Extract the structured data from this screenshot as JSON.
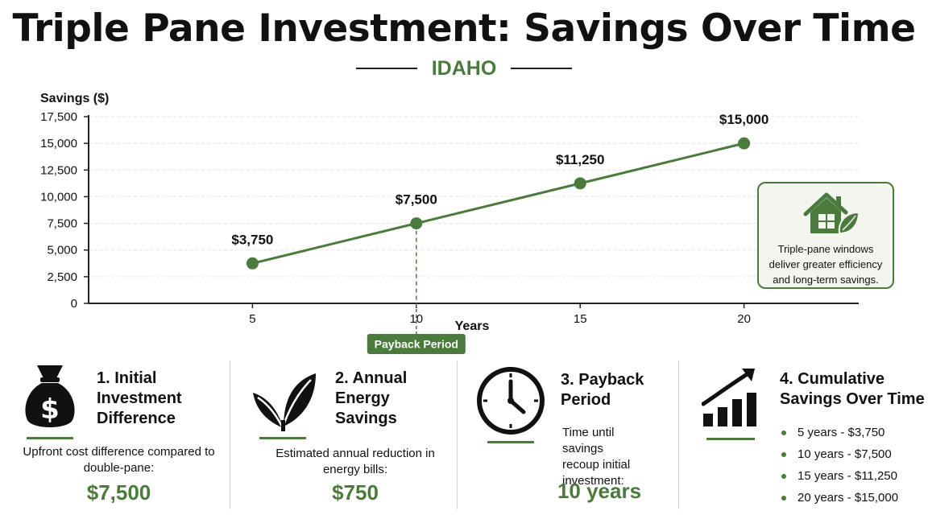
{
  "header": {
    "title": "Triple Pane Investment: Savings Over Time",
    "subtitle": "IDAHO"
  },
  "colors": {
    "accent": "#4a7a3c",
    "text": "#111111",
    "grid": "#e4e4e4",
    "info_bg": "#f3f6ef"
  },
  "chart_data": {
    "type": "line",
    "ylabel": "Savings ($)",
    "xlabel": "Years",
    "ylim": [
      0,
      17500
    ],
    "yticks": [
      0,
      2500,
      5000,
      7500,
      10000,
      12500,
      15000,
      17500
    ],
    "ytick_labels": [
      "0",
      "2,500",
      "5,000",
      "7,500",
      "10,000",
      "12,500",
      "15,000",
      "17,500"
    ],
    "x": [
      5,
      10,
      15,
      20
    ],
    "x_labels": [
      "5",
      "10",
      "15",
      "20"
    ],
    "series": [
      {
        "values": [
          3750,
          7500,
          11250,
          15000
        ],
        "data_labels": [
          "$3,750",
          "$7,500",
          "$11,250",
          "$15,000"
        ]
      }
    ],
    "grid": true,
    "annotation": {
      "x": 10,
      "label": "Payback Period"
    }
  },
  "info_box": {
    "icon": "house-leaf-icon",
    "text": "Triple-pane windows deliver greater efficiency and long-term savings."
  },
  "cards": [
    {
      "icon": "money-bag-icon",
      "title": "1. Initial Investment Difference",
      "desc": "Upfront cost difference compared to double-pane:",
      "value": "$7,500"
    },
    {
      "icon": "leaf-icon",
      "title": "2. Annual Energy Savings",
      "desc": "Estimated annual reduction in energy bills:",
      "value": "$750"
    },
    {
      "icon": "clock-icon",
      "title": "3. Payback Period",
      "desc": "Time until savings recoup initial investment:",
      "value": "10 years"
    },
    {
      "icon": "growth-chart-icon",
      "title": "4. Cumulative Savings Over Time",
      "list": [
        "5 years - $3,750",
        "10 years - $7,500",
        "15 years - $11,250",
        "20 years - $15,000"
      ]
    }
  ]
}
